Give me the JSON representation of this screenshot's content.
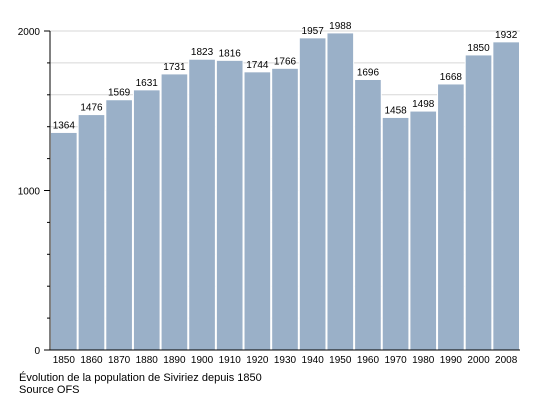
{
  "chart_data": {
    "type": "bar",
    "categories": [
      "1850",
      "1860",
      "1870",
      "1880",
      "1890",
      "1900",
      "1910",
      "1920",
      "1930",
      "1940",
      "1950",
      "1960",
      "1970",
      "1980",
      "1990",
      "2000",
      "2008"
    ],
    "values": [
      1364,
      1476,
      1569,
      1631,
      1731,
      1823,
      1816,
      1744,
      1766,
      1957,
      1988,
      1696,
      1458,
      1498,
      1668,
      1850,
      1932
    ],
    "ylim": [
      0,
      2000
    ],
    "yticks": [
      "0",
      "1000",
      "2000"
    ],
    "grid": true,
    "legend": "none",
    "bar_color": "#9ab0c8",
    "bar_edge_color": "#ffffff"
  },
  "captions": {
    "line1": "Évolution de la population de Siviriez depuis 1850",
    "line2": "Source OFS"
  }
}
